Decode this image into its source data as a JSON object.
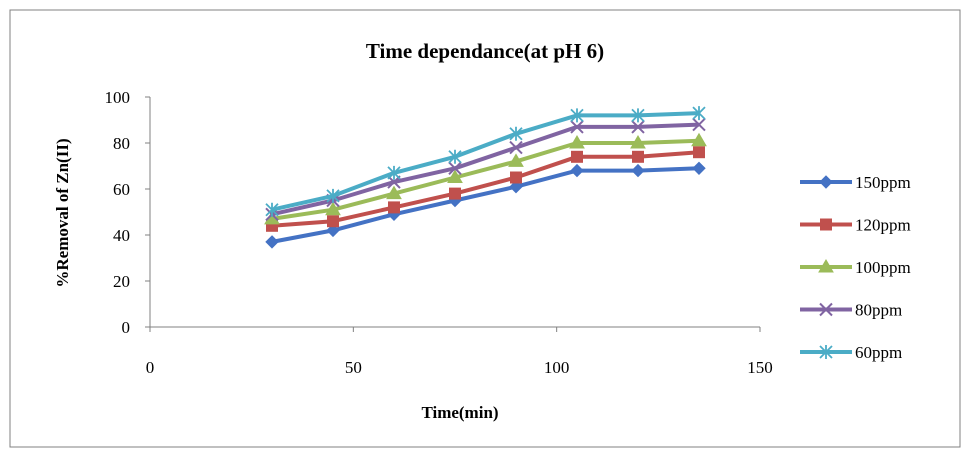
{
  "chart_data": {
    "type": "line",
    "title": "Time dependance(at pH 6)",
    "xlabel": "Time(min)",
    "ylabel": "%Removal of Zn(II)",
    "xlim": [
      0,
      150
    ],
    "ylim": [
      0,
      100
    ],
    "xticks": [
      0,
      50,
      100,
      150
    ],
    "yticks": [
      0,
      20,
      40,
      60,
      80,
      100
    ],
    "x": [
      30,
      45,
      60,
      75,
      90,
      105,
      120,
      135
    ],
    "grid": false,
    "legend_position": "right",
    "series": [
      {
        "name": "150ppm",
        "color": "#4472C4",
        "marker": "diamond",
        "values": [
          37,
          42,
          49,
          55,
          61,
          68,
          68,
          69
        ]
      },
      {
        "name": "120ppm",
        "color": "#C0504D",
        "marker": "square",
        "values": [
          44,
          46,
          52,
          58,
          65,
          74,
          74,
          76
        ]
      },
      {
        "name": "100ppm",
        "color": "#9BBB59",
        "marker": "triangle",
        "values": [
          47,
          51,
          58,
          65,
          72,
          80,
          80,
          81
        ]
      },
      {
        "name": "80ppm",
        "color": "#8064A2",
        "marker": "x",
        "values": [
          49,
          55,
          63,
          69,
          78,
          87,
          87,
          88
        ]
      },
      {
        "name": "60ppm",
        "color": "#4BACC6",
        "marker": "star",
        "values": [
          51,
          57,
          67,
          74,
          84,
          92,
          92,
          93
        ]
      }
    ]
  }
}
